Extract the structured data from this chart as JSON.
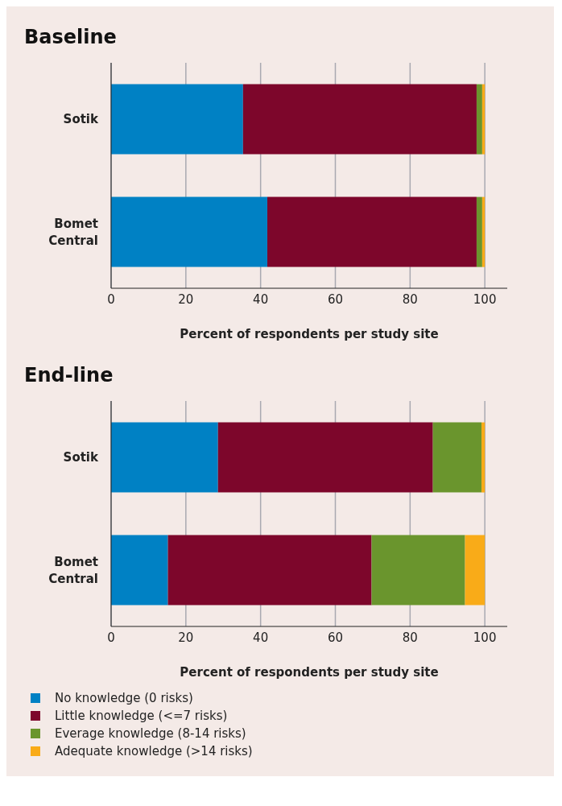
{
  "chart_data": [
    {
      "type": "bar",
      "orientation": "horizontal",
      "stacked": true,
      "title": "Baseline",
      "xlabel": "Percent of respondents per study site",
      "categories": [
        "Sotik",
        "Bomet Central"
      ],
      "xlim": [
        0,
        106
      ],
      "xticks": [
        0,
        20,
        40,
        60,
        80,
        100
      ],
      "grid": "x",
      "series": [
        {
          "color": "#0081c4",
          "values": [
            35.3,
            41.8
          ]
        },
        {
          "color": "#7d062b",
          "values": [
            62.5,
            56.0
          ]
        },
        {
          "color": "#6a952d",
          "values": [
            1.5,
            1.5
          ]
        },
        {
          "color": "#f9ab18",
          "values": [
            0.7,
            0.7
          ]
        }
      ]
    },
    {
      "type": "bar",
      "orientation": "horizontal",
      "stacked": true,
      "title": "End-line",
      "xlabel": "Percent of respondents per study site",
      "categories": [
        "Sotik",
        "Bomet Central"
      ],
      "xlim": [
        0,
        106
      ],
      "xticks": [
        0,
        20,
        40,
        60,
        80,
        100
      ],
      "grid": "x",
      "legend": "bottom",
      "series": [
        {
          "name": "No knowledge (0 risks)",
          "color": "#0081c4",
          "values": [
            28.6,
            15.2
          ]
        },
        {
          "name": "Little knowledge (<=7 risks)",
          "color": "#7d062b",
          "values": [
            57.5,
            54.5
          ]
        },
        {
          "name": "Everage knowledge (8-14 risks)",
          "color": "#6a952d",
          "values": [
            13.0,
            25.0
          ]
        },
        {
          "name": "Adequate knowledge (>14 risks)",
          "color": "#f9ab18",
          "values": [
            0.9,
            5.3
          ]
        }
      ]
    }
  ]
}
